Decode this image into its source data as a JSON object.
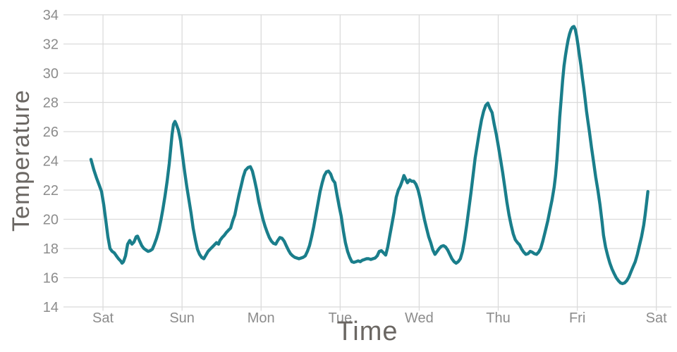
{
  "page": {
    "background": "#ffffff"
  },
  "chart_data": {
    "type": "line",
    "title": "",
    "xlabel": "Time",
    "ylabel": "Temperature",
    "grid": true,
    "legend": false,
    "colors": {
      "line": "#1a7e8b",
      "grid": "#dbdbdb",
      "tick_label": "#8c8c8c",
      "axis_title": "#6b6763",
      "background": "#ffffff"
    },
    "x_axis": {
      "label": "Time",
      "tick_labels": [
        "Sat",
        "Sun",
        "Mon",
        "Tue",
        "Wed",
        "Thu",
        "Fri",
        "Sat"
      ],
      "tick_positions_days": [
        0,
        1,
        2,
        3,
        4,
        5,
        6,
        7
      ],
      "range_days": [
        -0.5,
        7.19
      ]
    },
    "y_axis": {
      "label": "Temperature",
      "ticks": [
        14,
        16,
        18,
        20,
        22,
        24,
        26,
        28,
        30,
        32,
        34
      ],
      "range": [
        14,
        34
      ]
    },
    "series": [
      {
        "name": "Temperature",
        "points": [
          [
            -0.152,
            24.1
          ],
          [
            -0.116,
            23.4
          ],
          [
            -0.08,
            22.8
          ],
          [
            -0.045,
            22.3
          ],
          [
            -0.018,
            21.9
          ],
          [
            0.009,
            21.0
          ],
          [
            0.036,
            19.9
          ],
          [
            0.062,
            18.8
          ],
          [
            0.089,
            18.0
          ],
          [
            0.116,
            17.8
          ],
          [
            0.143,
            17.7
          ],
          [
            0.169,
            17.5
          ],
          [
            0.196,
            17.3
          ],
          [
            0.223,
            17.15
          ],
          [
            0.241,
            17.0
          ],
          [
            0.259,
            17.1
          ],
          [
            0.285,
            17.5
          ],
          [
            0.312,
            18.3
          ],
          [
            0.339,
            18.55
          ],
          [
            0.366,
            18.3
          ],
          [
            0.392,
            18.45
          ],
          [
            0.419,
            18.8
          ],
          [
            0.437,
            18.85
          ],
          [
            0.464,
            18.5
          ],
          [
            0.49,
            18.2
          ],
          [
            0.517,
            18.0
          ],
          [
            0.544,
            17.9
          ],
          [
            0.571,
            17.8
          ],
          [
            0.597,
            17.85
          ],
          [
            0.624,
            17.95
          ],
          [
            0.651,
            18.3
          ],
          [
            0.678,
            18.7
          ],
          [
            0.704,
            19.2
          ],
          [
            0.731,
            19.9
          ],
          [
            0.758,
            20.7
          ],
          [
            0.785,
            21.6
          ],
          [
            0.811,
            22.6
          ],
          [
            0.838,
            23.8
          ],
          [
            0.856,
            24.8
          ],
          [
            0.874,
            25.8
          ],
          [
            0.892,
            26.5
          ],
          [
            0.91,
            26.7
          ],
          [
            0.927,
            26.5
          ],
          [
            0.954,
            26.1
          ],
          [
            0.981,
            25.4
          ],
          [
            1.008,
            24.3
          ],
          [
            1.034,
            23.2
          ],
          [
            1.061,
            22.2
          ],
          [
            1.088,
            21.3
          ],
          [
            1.115,
            20.4
          ],
          [
            1.141,
            19.4
          ],
          [
            1.168,
            18.6
          ],
          [
            1.195,
            17.95
          ],
          [
            1.222,
            17.6
          ],
          [
            1.248,
            17.4
          ],
          [
            1.275,
            17.3
          ],
          [
            1.302,
            17.55
          ],
          [
            1.329,
            17.8
          ],
          [
            1.355,
            17.95
          ],
          [
            1.382,
            18.1
          ],
          [
            1.409,
            18.25
          ],
          [
            1.436,
            18.4
          ],
          [
            1.462,
            18.3
          ],
          [
            1.48,
            18.55
          ],
          [
            1.507,
            18.75
          ],
          [
            1.534,
            18.9
          ],
          [
            1.561,
            19.1
          ],
          [
            1.587,
            19.25
          ],
          [
            1.614,
            19.4
          ],
          [
            1.641,
            19.9
          ],
          [
            1.668,
            20.3
          ],
          [
            1.694,
            21.0
          ],
          [
            1.721,
            21.7
          ],
          [
            1.748,
            22.3
          ],
          [
            1.774,
            22.9
          ],
          [
            1.801,
            23.35
          ],
          [
            1.837,
            23.55
          ],
          [
            1.864,
            23.6
          ],
          [
            1.89,
            23.3
          ],
          [
            1.917,
            22.7
          ],
          [
            1.944,
            22.0
          ],
          [
            1.971,
            21.2
          ],
          [
            1.997,
            20.6
          ],
          [
            2.024,
            20.0
          ],
          [
            2.051,
            19.5
          ],
          [
            2.078,
            19.1
          ],
          [
            2.104,
            18.75
          ],
          [
            2.131,
            18.5
          ],
          [
            2.158,
            18.35
          ],
          [
            2.185,
            18.3
          ],
          [
            2.211,
            18.55
          ],
          [
            2.238,
            18.75
          ],
          [
            2.265,
            18.7
          ],
          [
            2.292,
            18.5
          ],
          [
            2.318,
            18.2
          ],
          [
            2.345,
            17.9
          ],
          [
            2.372,
            17.65
          ],
          [
            2.399,
            17.5
          ],
          [
            2.425,
            17.4
          ],
          [
            2.452,
            17.35
          ],
          [
            2.479,
            17.3
          ],
          [
            2.506,
            17.35
          ],
          [
            2.532,
            17.4
          ],
          [
            2.559,
            17.5
          ],
          [
            2.586,
            17.8
          ],
          [
            2.613,
            18.2
          ],
          [
            2.639,
            18.8
          ],
          [
            2.666,
            19.5
          ],
          [
            2.693,
            20.3
          ],
          [
            2.72,
            21.1
          ],
          [
            2.746,
            21.9
          ],
          [
            2.773,
            22.5
          ],
          [
            2.8,
            23.0
          ],
          [
            2.827,
            23.25
          ],
          [
            2.853,
            23.3
          ],
          [
            2.88,
            23.1
          ],
          [
            2.907,
            22.7
          ],
          [
            2.934,
            22.5
          ],
          [
            2.96,
            21.7
          ],
          [
            2.987,
            20.9
          ],
          [
            3.014,
            20.2
          ],
          [
            3.041,
            19.2
          ],
          [
            3.067,
            18.4
          ],
          [
            3.094,
            17.8
          ],
          [
            3.121,
            17.4
          ],
          [
            3.148,
            17.1
          ],
          [
            3.174,
            17.05
          ],
          [
            3.201,
            17.1
          ],
          [
            3.228,
            17.15
          ],
          [
            3.255,
            17.1
          ],
          [
            3.281,
            17.2
          ],
          [
            3.308,
            17.25
          ],
          [
            3.335,
            17.3
          ],
          [
            3.362,
            17.3
          ],
          [
            3.388,
            17.25
          ],
          [
            3.415,
            17.3
          ],
          [
            3.442,
            17.35
          ],
          [
            3.469,
            17.5
          ],
          [
            3.495,
            17.8
          ],
          [
            3.522,
            17.85
          ],
          [
            3.549,
            17.7
          ],
          [
            3.576,
            17.55
          ],
          [
            3.602,
            18.1
          ],
          [
            3.629,
            18.9
          ],
          [
            3.656,
            19.7
          ],
          [
            3.683,
            20.5
          ],
          [
            3.709,
            21.5
          ],
          [
            3.736,
            22.0
          ],
          [
            3.763,
            22.3
          ],
          [
            3.79,
            22.7
          ],
          [
            3.807,
            23.0
          ],
          [
            3.834,
            22.7
          ],
          [
            3.852,
            22.5
          ],
          [
            3.879,
            22.7
          ],
          [
            3.906,
            22.6
          ],
          [
            3.932,
            22.6
          ],
          [
            3.959,
            22.4
          ],
          [
            3.986,
            22.0
          ],
          [
            4.013,
            21.4
          ],
          [
            4.039,
            20.7
          ],
          [
            4.066,
            20.0
          ],
          [
            4.093,
            19.4
          ],
          [
            4.12,
            18.8
          ],
          [
            4.146,
            18.4
          ],
          [
            4.173,
            17.9
          ],
          [
            4.2,
            17.6
          ],
          [
            4.227,
            17.8
          ],
          [
            4.253,
            18.0
          ],
          [
            4.28,
            18.15
          ],
          [
            4.307,
            18.2
          ],
          [
            4.334,
            18.1
          ],
          [
            4.36,
            17.9
          ],
          [
            4.387,
            17.6
          ],
          [
            4.414,
            17.3
          ],
          [
            4.441,
            17.1
          ],
          [
            4.467,
            17.0
          ],
          [
            4.494,
            17.1
          ],
          [
            4.521,
            17.3
          ],
          [
            4.548,
            17.8
          ],
          [
            4.574,
            18.6
          ],
          [
            4.601,
            19.6
          ],
          [
            4.628,
            20.7
          ],
          [
            4.655,
            21.8
          ],
          [
            4.681,
            23.0
          ],
          [
            4.708,
            24.2
          ],
          [
            4.735,
            25.1
          ],
          [
            4.762,
            26.0
          ],
          [
            4.788,
            26.8
          ],
          [
            4.815,
            27.4
          ],
          [
            4.842,
            27.8
          ],
          [
            4.869,
            27.95
          ],
          [
            4.895,
            27.6
          ],
          [
            4.922,
            27.3
          ],
          [
            4.949,
            26.5
          ],
          [
            4.976,
            25.8
          ],
          [
            5.002,
            25.0
          ],
          [
            5.029,
            24.1
          ],
          [
            5.056,
            23.2
          ],
          [
            5.083,
            22.2
          ],
          [
            5.109,
            21.2
          ],
          [
            5.136,
            20.3
          ],
          [
            5.163,
            19.6
          ],
          [
            5.19,
            19.0
          ],
          [
            5.216,
            18.6
          ],
          [
            5.243,
            18.4
          ],
          [
            5.27,
            18.25
          ],
          [
            5.297,
            17.95
          ],
          [
            5.323,
            17.75
          ],
          [
            5.35,
            17.6
          ],
          [
            5.377,
            17.65
          ],
          [
            5.404,
            17.8
          ],
          [
            5.43,
            17.75
          ],
          [
            5.457,
            17.65
          ],
          [
            5.484,
            17.6
          ],
          [
            5.511,
            17.75
          ],
          [
            5.537,
            18.0
          ],
          [
            5.564,
            18.5
          ],
          [
            5.591,
            19.1
          ],
          [
            5.627,
            19.9
          ],
          [
            5.653,
            20.6
          ],
          [
            5.68,
            21.3
          ],
          [
            5.707,
            22.2
          ],
          [
            5.725,
            23.0
          ],
          [
            5.743,
            24.1
          ],
          [
            5.761,
            25.5
          ],
          [
            5.778,
            27.0
          ],
          [
            5.796,
            28.2
          ],
          [
            5.814,
            29.5
          ],
          [
            5.832,
            30.5
          ],
          [
            5.85,
            31.2
          ],
          [
            5.868,
            31.8
          ],
          [
            5.885,
            32.3
          ],
          [
            5.903,
            32.7
          ],
          [
            5.921,
            33.0
          ],
          [
            5.939,
            33.15
          ],
          [
            5.957,
            33.2
          ],
          [
            5.975,
            33.0
          ],
          [
            5.993,
            32.5
          ],
          [
            6.01,
            31.9
          ],
          [
            6.028,
            31.2
          ],
          [
            6.046,
            30.5
          ],
          [
            6.064,
            29.7
          ],
          [
            6.082,
            29.0
          ],
          [
            6.1,
            28.2
          ],
          [
            6.117,
            27.4
          ],
          [
            6.135,
            26.7
          ],
          [
            6.153,
            26.0
          ],
          [
            6.18,
            24.9
          ],
          [
            6.207,
            23.9
          ],
          [
            6.233,
            22.9
          ],
          [
            6.26,
            22.0
          ],
          [
            6.287,
            21.0
          ],
          [
            6.314,
            19.8
          ],
          [
            6.332,
            18.9
          ],
          [
            6.358,
            18.1
          ],
          [
            6.385,
            17.5
          ],
          [
            6.412,
            17.0
          ],
          [
            6.439,
            16.6
          ],
          [
            6.465,
            16.3
          ],
          [
            6.492,
            16.0
          ],
          [
            6.519,
            15.8
          ],
          [
            6.546,
            15.65
          ],
          [
            6.572,
            15.6
          ],
          [
            6.599,
            15.65
          ],
          [
            6.626,
            15.8
          ],
          [
            6.653,
            16.05
          ],
          [
            6.679,
            16.4
          ],
          [
            6.706,
            16.75
          ],
          [
            6.733,
            17.1
          ],
          [
            6.76,
            17.6
          ],
          [
            6.786,
            18.2
          ],
          [
            6.813,
            18.8
          ],
          [
            6.84,
            19.6
          ],
          [
            6.858,
            20.3
          ],
          [
            6.876,
            21.1
          ],
          [
            6.893,
            21.9
          ]
        ]
      }
    ]
  }
}
